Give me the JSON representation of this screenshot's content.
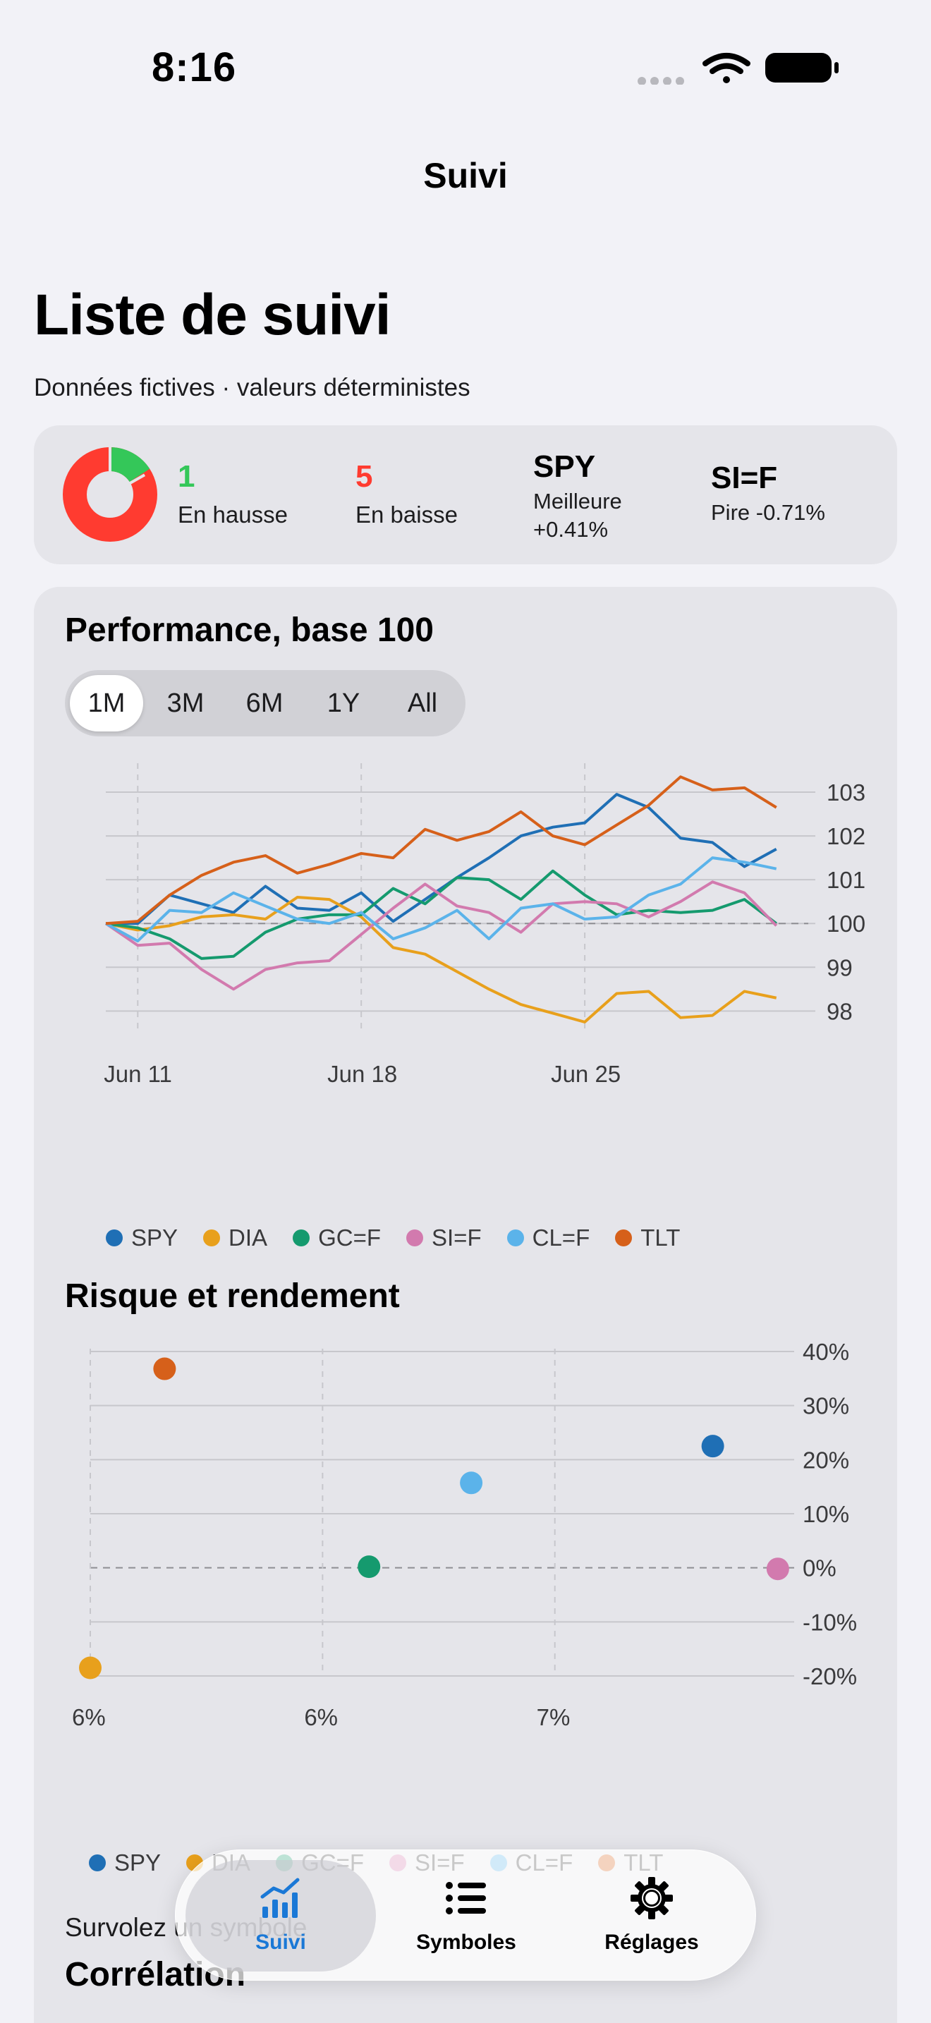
{
  "status": {
    "time": "8:16"
  },
  "nav": {
    "title": "Suivi"
  },
  "header": {
    "title": "Liste de suivi",
    "subtitle": "Données fictives · valeurs déterministes"
  },
  "summary": {
    "up_count": "1",
    "up_label": "En hausse",
    "down_count": "5",
    "down_label": "En baisse",
    "best_symbol": "SPY",
    "best_label": "Meilleure",
    "best_value": "+0.41%",
    "worst_symbol": "SI=F",
    "worst_label": "Pire -0.71%",
    "up_color": "#34c759",
    "down_color": "#ff3b30"
  },
  "performance": {
    "title": "Performance, base 100",
    "ranges": [
      "1M",
      "3M",
      "6M",
      "1Y",
      "All"
    ],
    "selected_range": "1M"
  },
  "risk": {
    "title": "Risque et rendement"
  },
  "hint": {
    "text": "Survolez un symbole"
  },
  "correlation": {
    "title": "Corrélation"
  },
  "tabs": [
    {
      "label": "Suivi",
      "icon": "chart-bar-icon"
    },
    {
      "label": "Symboles",
      "icon": "list-icon"
    },
    {
      "label": "Réglages",
      "icon": "gear-icon"
    }
  ],
  "chart_data": [
    {
      "type": "line",
      "x": [
        "Jun 10",
        "Jun 11",
        "Jun 12",
        "Jun 13",
        "Jun 14",
        "Jun 15",
        "Jun 16",
        "Jun 17",
        "Jun 18",
        "Jun 19",
        "Jun 20",
        "Jun 21",
        "Jun 22",
        "Jun 23",
        "Jun 24",
        "Jun 25",
        "Jun 26",
        "Jun 27",
        "Jun 28",
        "Jun 29",
        "Jun 30",
        "Jul 1",
        "Jul 2"
      ],
      "x_ticks": [
        "Jun 11",
        "Jun 18",
        "Jun 25"
      ],
      "y_ticks": [
        98,
        99,
        100,
        101,
        102,
        103
      ],
      "ylim": [
        97.7,
        103.5
      ],
      "reference_line": 100,
      "series": [
        {
          "name": "SPY",
          "color": "#1f6fb5",
          "values": [
            100,
            100.0,
            100.65,
            100.45,
            100.25,
            100.85,
            100.35,
            100.3,
            100.7,
            100.05,
            100.55,
            101.05,
            101.5,
            102.0,
            102.2,
            102.3,
            102.95,
            102.65,
            101.95,
            101.85,
            101.3,
            101.7,
            null
          ]
        },
        {
          "name": "DIA",
          "color": "#e8a01c",
          "values": [
            100,
            99.85,
            99.95,
            100.15,
            100.2,
            100.1,
            100.6,
            100.55,
            100.15,
            99.45,
            99.3,
            98.9,
            98.5,
            98.15,
            97.95,
            97.75,
            98.4,
            98.45,
            97.85,
            97.9,
            98.45,
            98.3,
            null
          ]
        },
        {
          "name": "GC=F",
          "color": "#159a6e",
          "values": [
            100,
            99.9,
            99.65,
            99.2,
            99.25,
            99.8,
            100.1,
            100.2,
            100.2,
            100.8,
            100.45,
            101.05,
            101.0,
            100.55,
            101.2,
            100.65,
            100.2,
            100.3,
            100.25,
            100.3,
            100.55,
            100.0,
            null
          ]
        },
        {
          "name": "SI=F",
          "color": "#d27aae",
          "values": [
            100,
            99.5,
            99.55,
            98.95,
            98.5,
            98.95,
            99.1,
            99.15,
            99.75,
            100.35,
            100.9,
            100.4,
            100.25,
            99.8,
            100.45,
            100.5,
            100.45,
            100.15,
            100.5,
            100.95,
            100.7,
            99.95,
            null
          ]
        },
        {
          "name": "CL=F",
          "color": "#5bb3ea",
          "values": [
            100,
            99.6,
            100.3,
            100.25,
            100.7,
            100.4,
            100.1,
            100.0,
            100.25,
            99.65,
            99.9,
            100.3,
            99.65,
            100.35,
            100.45,
            100.1,
            100.15,
            100.65,
            100.9,
            101.5,
            101.4,
            101.25,
            null
          ]
        },
        {
          "name": "TLT",
          "color": "#d6601a",
          "values": [
            100,
            100.05,
            100.65,
            101.1,
            101.4,
            101.55,
            101.15,
            101.35,
            101.6,
            101.5,
            102.15,
            101.9,
            102.1,
            102.55,
            102.0,
            101.8,
            102.25,
            102.7,
            103.35,
            103.05,
            103.1,
            102.65,
            null
          ]
        }
      ]
    },
    {
      "type": "scatter",
      "x_tick_labels": [
        "6%",
        "6%",
        "7%"
      ],
      "x_ticks": [
        5.5,
        6.0,
        6.5
      ],
      "xlim": [
        5.5,
        7.0
      ],
      "y_ticks": [
        -20,
        -10,
        0,
        10,
        20,
        30,
        40
      ],
      "y_tick_labels": [
        "-20%",
        "-10%",
        "0%",
        "10%",
        "20%",
        "30%",
        "40%"
      ],
      "ylim": [
        -20,
        40
      ],
      "points": [
        {
          "name": "SPY",
          "color": "#1f6fb5",
          "x": 6.84,
          "y": 22.5
        },
        {
          "name": "DIA",
          "color": "#e8a01c",
          "x": 5.5,
          "y": -18.5
        },
        {
          "name": "GC=F",
          "color": "#159a6e",
          "x": 6.1,
          "y": 0.2
        },
        {
          "name": "SI=F",
          "color": "#d27aae",
          "x": 6.98,
          "y": -0.2
        },
        {
          "name": "CL=F",
          "color": "#5bb3ea",
          "x": 6.32,
          "y": 15.7
        },
        {
          "name": "TLT",
          "color": "#d6601a",
          "x": 5.66,
          "y": 36.8
        }
      ]
    }
  ]
}
